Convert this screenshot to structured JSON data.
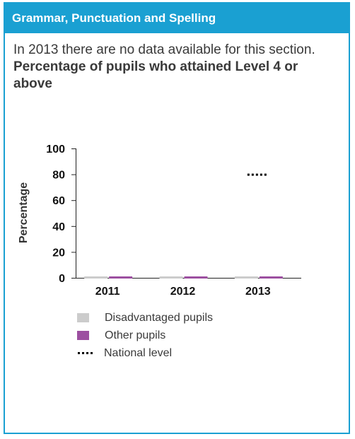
{
  "panel": {
    "header": "Grammar, Punctuation and Spelling",
    "notice": "In 2013 there are no data available for this section.",
    "chart_title": "Percentage of pupils who attained Level 4 or above"
  },
  "colors": {
    "header_bg": "#1aa0d2",
    "disadvantaged": "#cccccc",
    "other": "#9c4fa0",
    "national": "#000000"
  },
  "chart_data": {
    "type": "bar",
    "title": "Percentage of pupils who attained Level 4 or above",
    "ylabel": "Percentage",
    "xlabel": "",
    "ylim": [
      0,
      100
    ],
    "yticks": [
      0,
      20,
      40,
      60,
      80,
      100
    ],
    "categories": [
      "2011",
      "2012",
      "2013"
    ],
    "series": [
      {
        "name": "Disadvantaged pupils",
        "values": [
          0,
          0,
          0
        ],
        "color": "#cccccc"
      },
      {
        "name": "Other pupils",
        "values": [
          0,
          0,
          0
        ],
        "color": "#9c4fa0"
      }
    ],
    "national_level": {
      "name": "National level",
      "category": "2013",
      "value": 80
    },
    "legend": [
      "Disadvantaged pupils",
      "Other pupils",
      "National level"
    ],
    "legend_position": "bottom"
  }
}
